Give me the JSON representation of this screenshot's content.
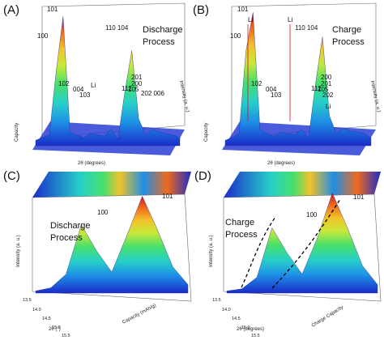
{
  "figure": {
    "panels": [
      {
        "letter": "(A)",
        "process_line1": "Discharge",
        "process_line2": "Process",
        "peaks": [
          "100",
          "101",
          "102",
          "004",
          "103",
          "Li",
          "110 104",
          "112",
          "200",
          "201",
          "105",
          "202 006"
        ],
        "xlabel": "2θ (degrees)",
        "ylabel": "Intensity (a. u.)",
        "zlabel": "Capacity"
      },
      {
        "letter": "(B)",
        "process_line1": "Charge",
        "process_line2": "Process",
        "peaks": [
          "100",
          "101",
          "Li",
          "102",
          "004",
          "103",
          "Li",
          "110 104",
          "112",
          "200",
          "201",
          "105",
          "202",
          "Li"
        ],
        "xlabel": "2θ (degrees)",
        "ylabel": "Intensity (a. u.)",
        "zlabel": "Capacity"
      },
      {
        "letter": "(C)",
        "process_line1": "Discharge",
        "process_line2": "Process",
        "peaks": [
          "100",
          "101"
        ],
        "xlabel": "2θ (°)",
        "ylabel": "Intensity (a. u.)",
        "zlabel": "Capacity (mAh/g)",
        "xticks": [
          "13.5",
          "14.0",
          "14.5",
          "15.0",
          "15.5"
        ]
      },
      {
        "letter": "(D)",
        "process_line1": "Charge",
        "process_line2": "Process",
        "peaks": [
          "100",
          "101"
        ],
        "xlabel": "2θ (degrees)",
        "ylabel": "Intensity (a. u.)",
        "zlabel": "Charge Capacity",
        "xticks": [
          "13.5",
          "14.0",
          "14.5",
          "15.0",
          "15.5"
        ]
      }
    ]
  },
  "chart_data": [
    {
      "type": "area",
      "title": "",
      "xlabel": "2θ (degrees)",
      "ylabel": "Intensity (a. u.)",
      "series": [
        {
          "values": [
            4,
            6,
            8,
            55,
            95,
            10,
            8,
            6,
            9,
            8,
            7,
            12,
            5,
            40,
            70,
            20,
            8,
            12,
            10,
            9,
            8,
            6
          ]
        }
      ]
    },
    {
      "type": "area",
      "title": "",
      "xlabel": "2θ (degrees)",
      "ylabel": "Intensity (a. u.)",
      "series": [
        {
          "values": [
            4,
            6,
            9,
            70,
            98,
            12,
            9,
            7,
            10,
            9,
            8,
            12,
            6,
            45,
            80,
            22,
            9,
            13,
            11,
            10,
            9,
            6
          ]
        }
      ]
    },
    {
      "type": "area",
      "title": "",
      "xlabel": "2θ (°)",
      "ylabel": "Intensity (a. u.)",
      "xticks": [
        "13.5",
        "14.0",
        "14.5",
        "15.0",
        "15.5"
      ],
      "series": [
        {
          "values": [
            2,
            5,
            18,
            65,
            40,
            20,
            55,
            92,
            60,
            25,
            8
          ]
        }
      ]
    },
    {
      "type": "area",
      "title": "",
      "xlabel": "2θ (degrees)",
      "ylabel": "Intensity (a. u.)",
      "xticks": [
        "13.5",
        "14.0",
        "14.5",
        "15.0",
        "15.5"
      ],
      "series": [
        {
          "values": [
            2,
            4,
            15,
            62,
            38,
            18,
            52,
            95,
            62,
            26,
            8
          ]
        }
      ]
    }
  ],
  "colors": {
    "ramp": [
      "#1a2cc9",
      "#1e8fe6",
      "#26d0c8",
      "#49e06a",
      "#c8e83a",
      "#f2c22a",
      "#ef6a1d",
      "#d8121b"
    ]
  }
}
